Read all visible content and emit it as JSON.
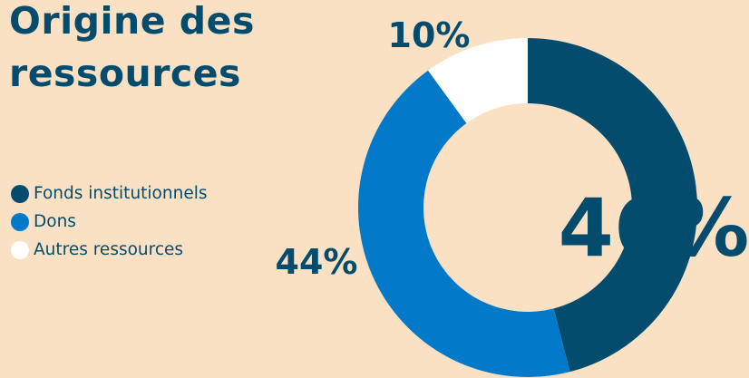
{
  "title_lines": [
    "Origine des",
    "ressources"
  ],
  "colors": {
    "background": "#fae1c3",
    "text": "#044c6e"
  },
  "chart_data": {
    "type": "pie",
    "style": "donut",
    "title": "Origine des ressources",
    "legend_position": "left",
    "slices": [
      {
        "label": "Fonds institutionnels",
        "value": 46,
        "display": "46%",
        "color": "#044c6e"
      },
      {
        "label": "Dons",
        "value": 44,
        "display": "44%",
        "color": "#0279c9"
      },
      {
        "label": "Autres ressources",
        "value": 10,
        "display": "10%",
        "color": "#ffffff"
      }
    ]
  }
}
